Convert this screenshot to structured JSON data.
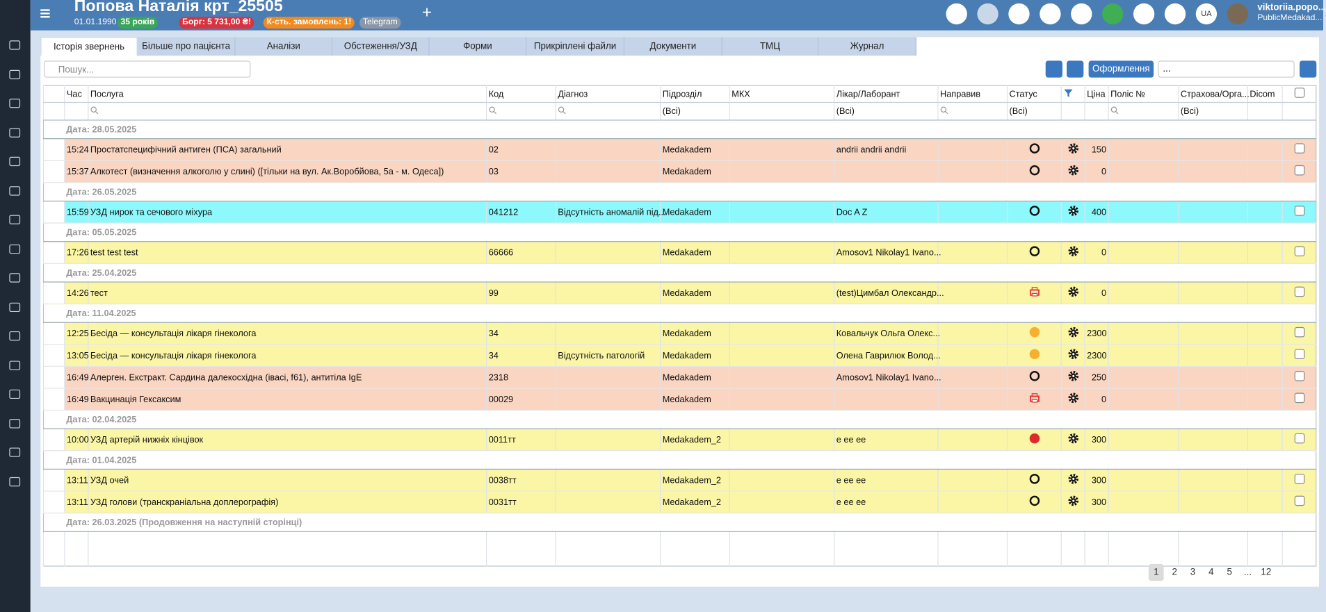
{
  "header": {
    "patient_name": "Попова Наталія крт_25505",
    "birth_date": "01.01.1990",
    "age": "35 років",
    "debt": "Борг: 5 731,00 ₴!",
    "orders": "К-сть. замовлень: 1!",
    "messenger": "Telegram",
    "language": "UA",
    "user_name": "viktoriia.popo...",
    "user_org": "PublicMedakad..."
  },
  "tabs": [
    "Історія звернень",
    "Більше про пацієнта",
    "Аналізи",
    "Обстеження/УЗД",
    "Форми",
    "Прикріплені файли",
    "Документи",
    "ТМЦ",
    "Журнал"
  ],
  "toolbar": {
    "search_placeholder": "Пошук...",
    "button": "Оформлення",
    "select": "..."
  },
  "table": {
    "columns": {
      "time": "Час",
      "service": "Послуга",
      "code": "Код",
      "diagnosis": "Діагноз",
      "department": "Підрозділ",
      "mkh": "МКХ",
      "doctor": "Лікар/Лаборант",
      "referrer": "Направив",
      "status": "Статус",
      "price": "Ціна",
      "policy": "Поліс №",
      "insurance": "Страхова/Орга...",
      "dicom": "Dicom"
    },
    "filters": {
      "department": "(Всі)",
      "doctor": "(Всі)",
      "status": "(Всі)",
      "insurance": "(Всі)"
    },
    "groups": [
      {
        "label": "Дата: 28.05.2025",
        "rows": [
          {
            "time": "15:24",
            "service": "Простатспецифічний антиген (ПСА) загальний",
            "code": "02",
            "department": "Medakadem",
            "doctor": "andrii andrii andrii",
            "status": "open",
            "price": 150,
            "color": "#f9d5c2"
          },
          {
            "time": "15:37",
            "service": "Алкотест (визначення алкоголю у слині) ([тільки на вул. Ак.Воробйова, 5а - м. Одеса])",
            "code": "03",
            "department": "Medakadem",
            "status": "open",
            "price": 0,
            "color": "#f9d5c2"
          }
        ]
      },
      {
        "label": "Дата: 26.05.2025",
        "rows": [
          {
            "time": "15:59",
            "service": "УЗД нирок та сечового міхура",
            "code": "041212",
            "diagnosis": "Відсутність аномалій під...",
            "department": "Medakadem",
            "doctor": "Doc A Z",
            "status": "open",
            "price": 400,
            "color": "#8df9fc"
          }
        ]
      },
      {
        "label": "Дата: 05.05.2025",
        "rows": [
          {
            "time": "17:26",
            "service": "test test test",
            "code": "66666",
            "department": "Medakadem",
            "doctor": "Amosov1 Nikolay1 Ivano...",
            "status": "open",
            "price": 0,
            "color": "#fbf6a6"
          }
        ]
      },
      {
        "label": "Дата: 25.04.2025",
        "rows": [
          {
            "time": "14:26",
            "service": "тест",
            "code": "99",
            "department": "Medakadem",
            "doctor": "(test)Цимбал Олександр...",
            "status": "printed",
            "price": 0,
            "color": "#fbf6a6"
          }
        ]
      },
      {
        "label": "Дата: 11.04.2025",
        "rows": [
          {
            "time": "12:25",
            "service": "Бесіда — консультація  лікаря гінеколога",
            "code": "34",
            "department": "Medakadem",
            "doctor": "Ковальчук Ольга Олекс...",
            "status": "pending",
            "price": 2300,
            "color": "#fbf6a6"
          },
          {
            "time": "13:05",
            "service": "Бесіда — консультація  лікаря гінеколога",
            "code": "34",
            "diagnosis": "Відсутність патологій",
            "department": "Medakadem",
            "doctor": "Олена Гаврилюк Волод...",
            "status": "pending",
            "price": 2300,
            "color": "#fbf6a6"
          },
          {
            "time": "16:49",
            "service": "Алерген. Екстракт. Сардина далекосхідна (івасі, f61), антитіла IgE",
            "code": "2318",
            "department": "Medakadem",
            "doctor": "Amosov1 Nikolay1 Ivano...",
            "status": "open",
            "price": 250,
            "color": "#f9d5c2"
          },
          {
            "time": "16:49",
            "service": "Вакцинація Гексаксим",
            "code": "00029",
            "department": "Medakadem",
            "status": "printed",
            "price": 0,
            "color": "#f9d5c2"
          }
        ]
      },
      {
        "label": "Дата: 02.04.2025",
        "rows": [
          {
            "time": "10:00",
            "service": "УЗД артерій нижніх кінцівок",
            "code": "0011тт",
            "department": "Medakadem_2",
            "doctor": "е ее ее",
            "status": "cancelled",
            "price": 300,
            "color": "#fbf6a6"
          }
        ]
      },
      {
        "label": "Дата: 01.04.2025",
        "rows": [
          {
            "time": "13:11",
            "service": "УЗД очей",
            "code": "0038тт",
            "department": "Medakadem_2",
            "doctor": "е ее ее",
            "status": "open",
            "price": 300,
            "color": "#fbf6a6"
          },
          {
            "time": "13:11",
            "service": "УЗД голови (транскраніальна доплерографія)",
            "code": "0031тт",
            "department": "Medakadem_2",
            "doctor": "е ее ее",
            "status": "open",
            "price": 300,
            "color": "#fbf6a6"
          }
        ]
      },
      {
        "label": "Дата: 26.03.2025 (Продовження на наступній сторінці)",
        "rows": []
      }
    ]
  },
  "pagination": {
    "pages": [
      "1",
      "2",
      "3",
      "4",
      "5",
      "...",
      "12"
    ],
    "current": 0
  }
}
